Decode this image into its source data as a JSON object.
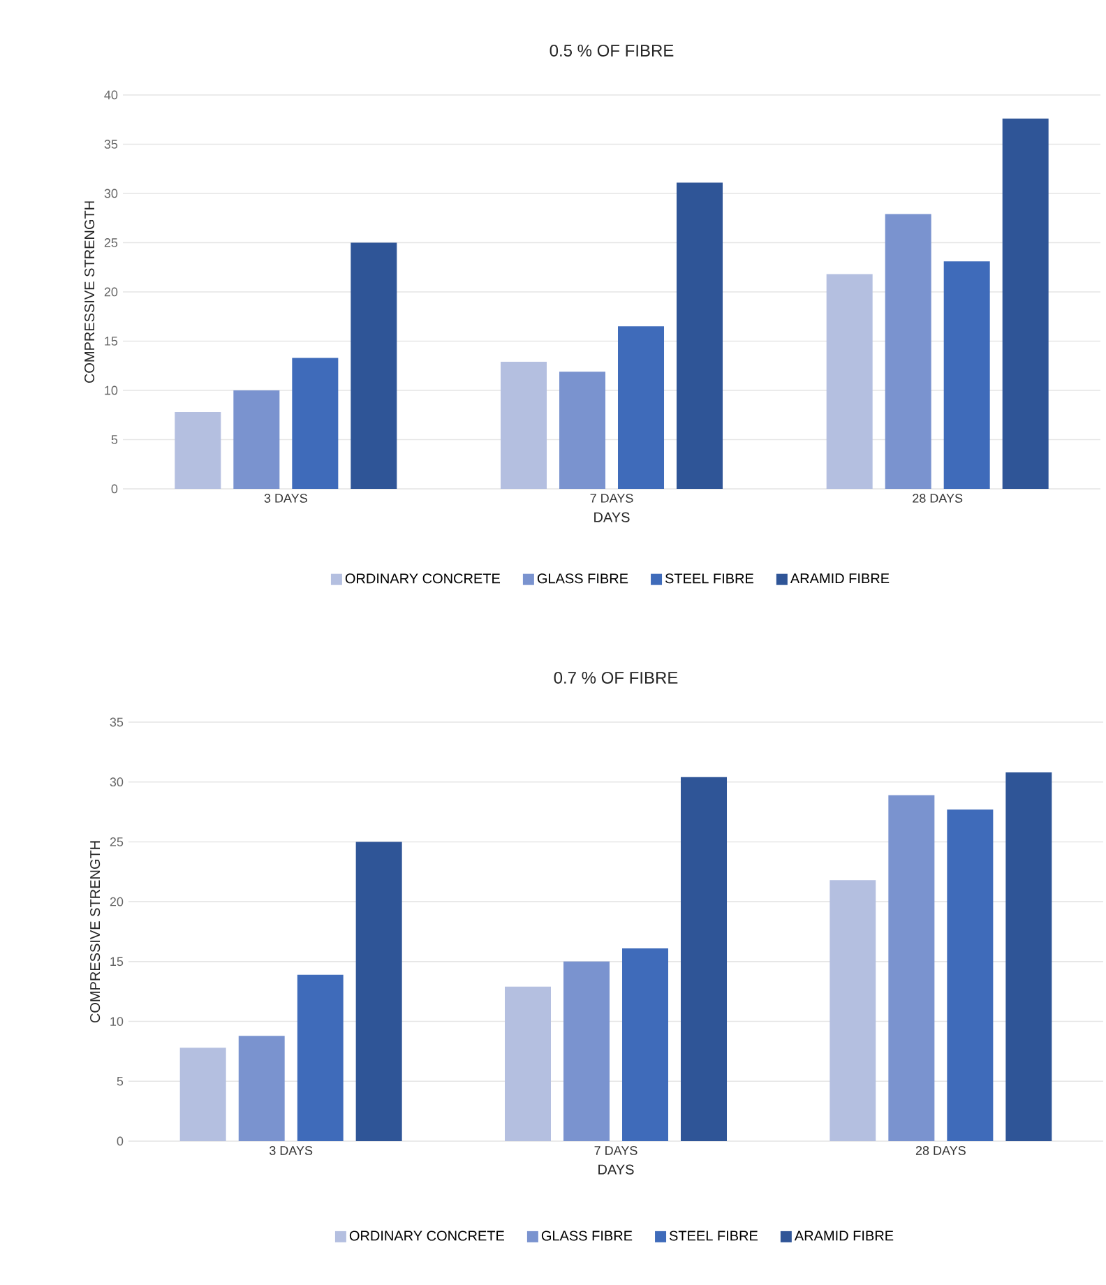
{
  "chart_data": [
    {
      "type": "bar",
      "title": "0.5 % OF FIBRE",
      "xlabel": "DAYS",
      "ylabel": "COMPRESSIVE STRENGTH",
      "categories": [
        "3 DAYS",
        "7 DAYS",
        "28 DAYS"
      ],
      "series": [
        {
          "name": "ORDINARY CONCRETE",
          "color": "#b4bfe0",
          "values": [
            7.8,
            12.9,
            21.8
          ]
        },
        {
          "name": "GLASS FIBRE",
          "color": "#7a93cf",
          "values": [
            10,
            11.9,
            27.9
          ]
        },
        {
          "name": "STEEL FIBRE",
          "color": "#3f6bba",
          "values": [
            13.3,
            16.5,
            23.1
          ]
        },
        {
          "name": "ARAMID FIBRE",
          "color": "#2f5597",
          "values": [
            25,
            31.1,
            37.6
          ]
        }
      ],
      "ylim": [
        0,
        40
      ],
      "yticks": [
        0,
        5,
        10,
        15,
        20,
        25,
        30,
        35,
        40
      ],
      "grid": "y",
      "legend": "bottom"
    },
    {
      "type": "bar",
      "title": "0.7 % OF FIBRE",
      "xlabel": "DAYS",
      "ylabel": "COMPRESSIVE STRENGTH",
      "categories": [
        "3 DAYS",
        "7 DAYS",
        "28 DAYS"
      ],
      "series": [
        {
          "name": "ORDINARY CONCRETE",
          "color": "#b4bfe0",
          "values": [
            7.8,
            12.9,
            21.8
          ]
        },
        {
          "name": "GLASS FIBRE",
          "color": "#7a93cf",
          "values": [
            8.8,
            15,
            28.9
          ]
        },
        {
          "name": "STEEL FIBRE",
          "color": "#3f6bba",
          "values": [
            13.9,
            16.1,
            27.7
          ]
        },
        {
          "name": "ARAMID FIBRE",
          "color": "#2f5597",
          "values": [
            25,
            30.4,
            30.8
          ]
        }
      ],
      "ylim": [
        0,
        35
      ],
      "yticks": [
        0,
        5,
        10,
        15,
        20,
        25,
        30,
        35
      ],
      "grid": "y",
      "legend": "bottom"
    }
  ]
}
